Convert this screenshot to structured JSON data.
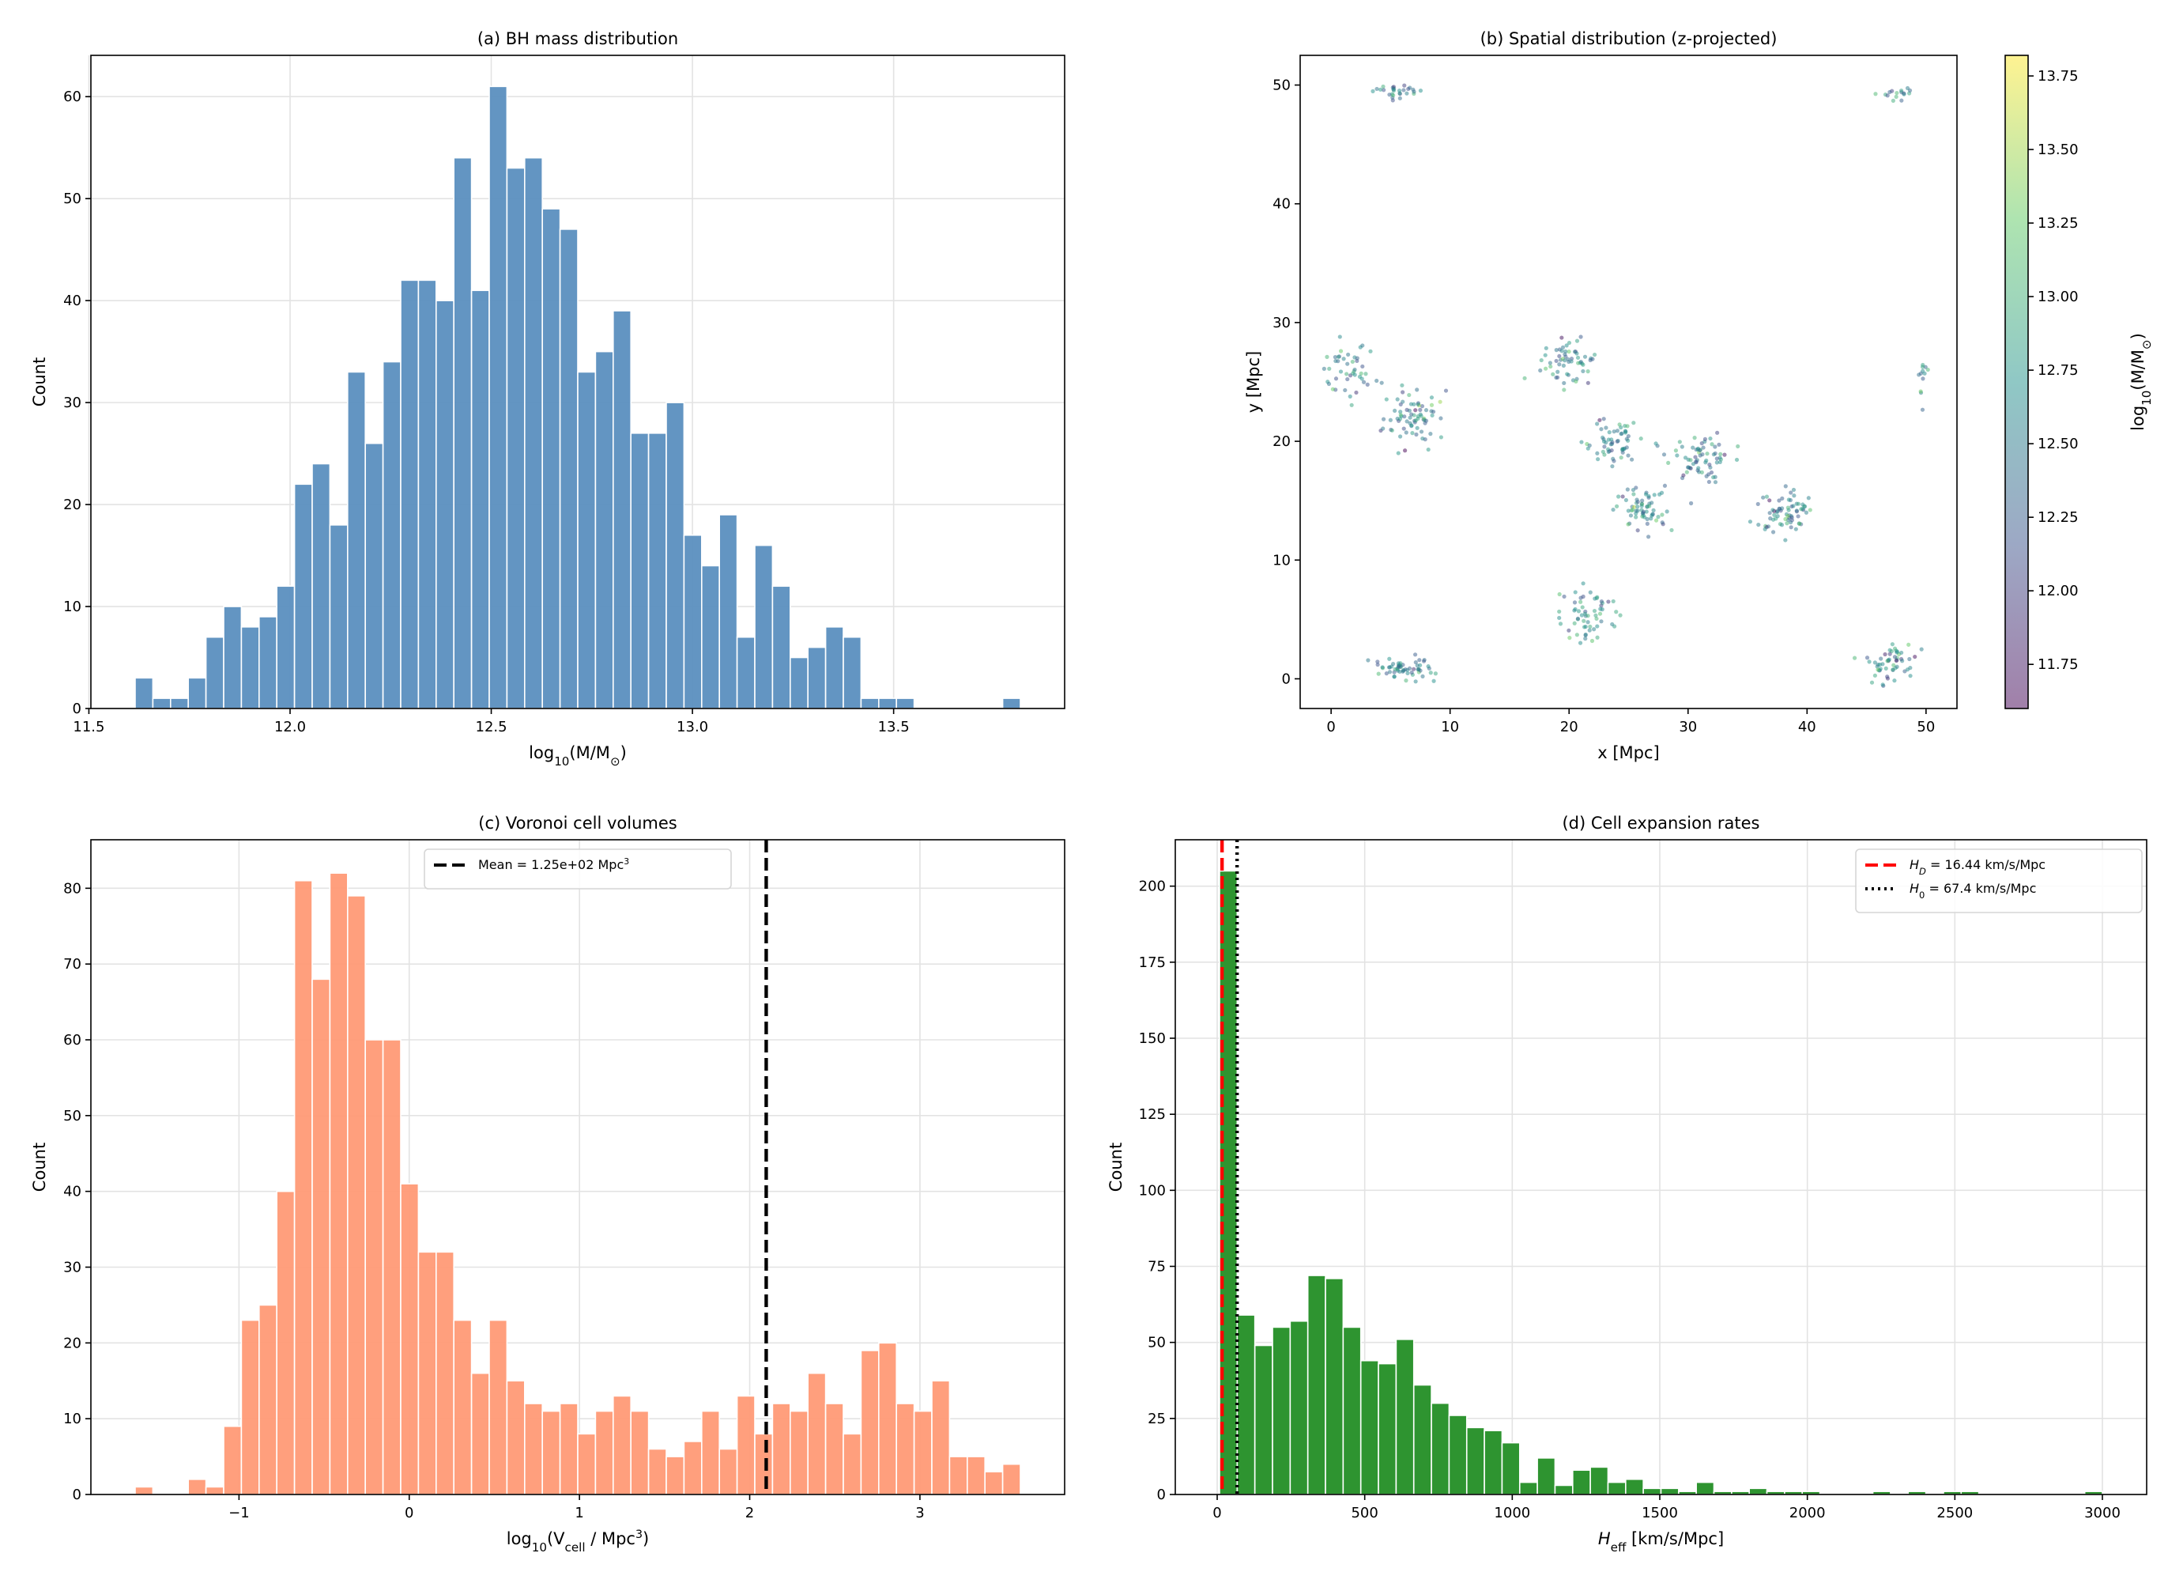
{
  "chart_data": [
    {
      "id": "a",
      "type": "bar",
      "title": "(a) BH mass distribution",
      "xlabel": [
        {
          "t": "log"
        },
        {
          "t": "10",
          "sub": true
        },
        {
          "t": "(M/M"
        },
        {
          "t": "⊙",
          "sub": true
        },
        {
          "t": ")"
        }
      ],
      "ylabel": [
        {
          "t": "Count"
        }
      ],
      "bin_start": 11.615,
      "bin_width": 0.044,
      "values": [
        3,
        1,
        1,
        3,
        7,
        10,
        8,
        9,
        12,
        22,
        24,
        18,
        33,
        26,
        34,
        42,
        42,
        40,
        54,
        41,
        61,
        53,
        54,
        49,
        47,
        33,
        35,
        39,
        27,
        27,
        30,
        17,
        14,
        19,
        7,
        16,
        12,
        5,
        6,
        8,
        7,
        1,
        1,
        1,
        0,
        0,
        0,
        0,
        0,
        1
      ],
      "color": "#5b8fbf",
      "xlim": [
        11.505,
        13.925
      ],
      "ylim": [
        0,
        64.05
      ],
      "xticks": [
        11.5,
        12.0,
        12.5,
        13.0,
        13.5
      ],
      "xticklabels": [
        "11.5",
        "12.0",
        "12.5",
        "13.0",
        "13.5"
      ],
      "yticks": [
        0,
        10,
        20,
        30,
        40,
        50,
        60
      ],
      "yticklabels": [
        "0",
        "10",
        "20",
        "30",
        "40",
        "50",
        "60"
      ],
      "grid": true
    },
    {
      "id": "b",
      "type": "scatter",
      "title": "(b) Spatial distribution (z-projected)",
      "xlabel": [
        {
          "t": "x [Mpc]"
        }
      ],
      "ylabel": [
        {
          "t": "y [Mpc]"
        }
      ],
      "xlim": [
        -2.6,
        52.6
      ],
      "ylim": [
        -2.5,
        52.5
      ],
      "xticks": [
        0,
        10,
        20,
        30,
        40,
        50
      ],
      "xticklabels": [
        "0",
        "10",
        "20",
        "30",
        "40",
        "50"
      ],
      "yticks": [
        0,
        10,
        20,
        30,
        40,
        50
      ],
      "yticklabels": [
        "0",
        "10",
        "20",
        "30",
        "40",
        "50"
      ],
      "grid": false,
      "colormap": "viridis",
      "alpha": 0.5,
      "clusters": [
        {
          "x": 5.5,
          "y": 49.5,
          "sx": 1.0,
          "sy": 0.3,
          "n": 28
        },
        {
          "x": 47.3,
          "y": 49.3,
          "sx": 0.9,
          "sy": 0.3,
          "n": 16
        },
        {
          "x": 1.5,
          "y": 25.8,
          "sx": 1.2,
          "sy": 1.2,
          "n": 45
        },
        {
          "x": 7.0,
          "y": 22.0,
          "sx": 1.3,
          "sy": 1.3,
          "n": 75
        },
        {
          "x": 20.0,
          "y": 26.7,
          "sx": 1.1,
          "sy": 0.9,
          "n": 60
        },
        {
          "x": 23.5,
          "y": 20.0,
          "sx": 1.2,
          "sy": 1.0,
          "n": 60
        },
        {
          "x": 31.0,
          "y": 18.8,
          "sx": 1.3,
          "sy": 1.0,
          "n": 70
        },
        {
          "x": 26.0,
          "y": 14.2,
          "sx": 1.1,
          "sy": 1.0,
          "n": 65
        },
        {
          "x": 38.2,
          "y": 14.3,
          "sx": 1.2,
          "sy": 0.9,
          "n": 70
        },
        {
          "x": 21.5,
          "y": 5.2,
          "sx": 1.2,
          "sy": 1.2,
          "n": 60
        },
        {
          "x": 6.0,
          "y": 0.9,
          "sx": 1.3,
          "sy": 0.5,
          "n": 60
        },
        {
          "x": 47.0,
          "y": 1.4,
          "sx": 1.0,
          "sy": 0.9,
          "n": 55
        },
        {
          "x": 49.8,
          "y": 25.8,
          "sx": 0.2,
          "sy": 1.0,
          "n": 12
        }
      ],
      "colorbar": {
        "label": [
          {
            "t": "log"
          },
          {
            "t": "10",
            "sub": true
          },
          {
            "t": "(M/M"
          },
          {
            "t": "⊙",
            "sub": true
          },
          {
            "t": ")"
          }
        ],
        "range": [
          11.6,
          13.82
        ],
        "ticks": [
          11.75,
          12.0,
          12.25,
          12.5,
          12.75,
          13.0,
          13.25,
          13.5,
          13.75
        ],
        "ticklabels": [
          "11.75",
          "12.00",
          "12.25",
          "12.50",
          "12.75",
          "13.00",
          "13.25",
          "13.50",
          "13.75"
        ]
      }
    },
    {
      "id": "c",
      "type": "bar",
      "title": "(c) Voronoi cell volumes",
      "xlabel": [
        {
          "t": "log"
        },
        {
          "t": "10",
          "sub": true
        },
        {
          "t": "(V"
        },
        {
          "t": "cell",
          "sub": true
        },
        {
          "t": " / Mpc"
        },
        {
          "t": "3",
          "sup": true
        },
        {
          "t": ")"
        }
      ],
      "ylabel": [
        {
          "t": "Count"
        }
      ],
      "bin_start": -1.61,
      "bin_width": 0.104,
      "values": [
        1,
        0,
        0,
        2,
        1,
        9,
        23,
        25,
        40,
        81,
        68,
        82,
        79,
        60,
        60,
        41,
        32,
        32,
        23,
        16,
        23,
        15,
        12,
        11,
        12,
        8,
        11,
        13,
        11,
        6,
        5,
        7,
        11,
        6,
        13,
        8,
        12,
        11,
        16,
        12,
        8,
        19,
        20,
        12,
        11,
        15,
        5,
        5,
        3,
        4
      ],
      "color": "#ff9a76",
      "xlim": [
        -1.87,
        3.85
      ],
      "ylim": [
        0,
        86.4
      ],
      "xticks": [
        -1,
        0,
        1,
        2,
        3
      ],
      "xticklabels": [
        "−1",
        "0",
        "1",
        "2",
        "3"
      ],
      "yticks": [
        0,
        10,
        20,
        30,
        40,
        50,
        60,
        70,
        80
      ],
      "yticklabels": [
        "0",
        "10",
        "20",
        "30",
        "40",
        "50",
        "60",
        "70",
        "80"
      ],
      "grid": true,
      "vlines": [
        {
          "x": 2.097,
          "color": "#000000",
          "style": "dashed",
          "legend": [
            {
              "t": "Mean = 1.25e+02 Mpc"
            },
            {
              "t": "3",
              "sup": true
            }
          ]
        }
      ],
      "legend_position": "upper-center"
    },
    {
      "id": "d",
      "type": "bar",
      "title": "(d) Cell expansion rates",
      "xlabel": [
        {
          "t": "H",
          "it": true
        },
        {
          "t": "eff",
          "sub": true
        },
        {
          "t": " [km/s/Mpc]"
        }
      ],
      "ylabel": [
        {
          "t": "Count"
        }
      ],
      "bin_start": 8,
      "bin_width": 59.84,
      "values": [
        205,
        59,
        49,
        55,
        57,
        72,
        71,
        55,
        44,
        43,
        51,
        36,
        30,
        26,
        22,
        21,
        17,
        4,
        12,
        3,
        8,
        9,
        4,
        5,
        2,
        2,
        1,
        4,
        1,
        1,
        2,
        1,
        1,
        1,
        0,
        0,
        0,
        1,
        0,
        1,
        0,
        1,
        1,
        0,
        0,
        0,
        0,
        0,
        0,
        1
      ],
      "color": "#2e9430",
      "xlim": [
        -142,
        3150
      ],
      "ylim": [
        0,
        215.25
      ],
      "xticks": [
        0,
        500,
        1000,
        1500,
        2000,
        2500,
        3000
      ],
      "xticklabels": [
        "0",
        "500",
        "1000",
        "1500",
        "2000",
        "2500",
        "3000"
      ],
      "yticks": [
        0,
        25,
        50,
        75,
        100,
        125,
        150,
        175,
        200
      ],
      "yticklabels": [
        "0",
        "25",
        "50",
        "75",
        "100",
        "125",
        "150",
        "175",
        "200"
      ],
      "grid": true,
      "vlines": [
        {
          "x": 16.44,
          "color": "#ff0000",
          "style": "dashed",
          "legend": [
            {
              "t": "H",
              "it": true
            },
            {
              "t": "D",
              "sub": true,
              "it": true
            },
            {
              "t": " = 16.44 km/s/Mpc"
            }
          ]
        },
        {
          "x": 67.4,
          "color": "#000000",
          "style": "dotted",
          "legend": [
            {
              "t": "H",
              "it": true
            },
            {
              "t": "0",
              "sub": true
            },
            {
              "t": " = 67.4 km/s/Mpc"
            }
          ]
        }
      ],
      "legend_position": "upper-right"
    }
  ]
}
